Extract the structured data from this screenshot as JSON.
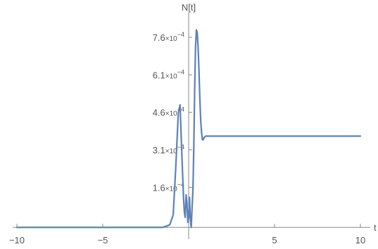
{
  "chart_data": {
    "type": "line",
    "title": "",
    "xlabel": "t",
    "ylabel": "N[t]",
    "xlim": [
      -10,
      10
    ],
    "ylim": [
      -5e-06,
      0.000825
    ],
    "grid": false,
    "legend": "none",
    "series_color": "#5E81B5",
    "x_ticks": [
      {
        "value": -10,
        "label": "−10"
      },
      {
        "value": -5,
        "label": "−5"
      },
      {
        "value": 5,
        "label": "5"
      },
      {
        "value": 10,
        "label": "10"
      }
    ],
    "y_ticks": [
      {
        "value": 0.00016,
        "mantissa": "1.6",
        "exponent": "−4"
      },
      {
        "value": 0.00031,
        "mantissa": "3.1",
        "exponent": "−4"
      },
      {
        "value": 0.00046,
        "mantissa": "4.6",
        "exponent": "−4"
      },
      {
        "value": 0.00061,
        "mantissa": "6.1",
        "exponent": "−4"
      },
      {
        "value": 0.00076,
        "mantissa": "7.6",
        "exponent": "−4"
      }
    ],
    "series": [
      {
        "x": [
          -10,
          -5,
          -1.5,
          -1.1,
          -0.9,
          -0.75,
          -0.6,
          -0.5,
          -0.4,
          -0.3,
          -0.25,
          -0.2,
          -0.15,
          -0.1,
          -0.05,
          0.0,
          0.05,
          0.1,
          0.15,
          0.2,
          0.25,
          0.3,
          0.35,
          0.4,
          0.45,
          0.5,
          0.55,
          0.6,
          0.65,
          0.7,
          0.75,
          0.8,
          0.85,
          0.9,
          1.0,
          1.1,
          1.2,
          1.3,
          1.4,
          1.6,
          2.0,
          5,
          10
        ],
        "y": [
          0.0,
          0.0,
          0.0,
          1e-05,
          5e-05,
          0.00024,
          0.00046,
          0.00049,
          0.0003,
          0.00012,
          6e-05,
          4e-05,
          0.00013,
          0.0001,
          2e-05,
          4e-05,
          0.00012,
          3e-05,
          0.0,
          8e-05,
          0.00015,
          0.00032,
          0.00055,
          0.00072,
          0.00079,
          0.00078,
          0.00072,
          0.00063,
          0.00052,
          0.00043,
          0.00038,
          0.00035,
          0.00035,
          0.00036,
          0.000365,
          0.000365,
          0.000365,
          0.000365,
          0.000365,
          0.000365,
          0.000365,
          0.000365,
          0.000365
        ]
      }
    ]
  }
}
